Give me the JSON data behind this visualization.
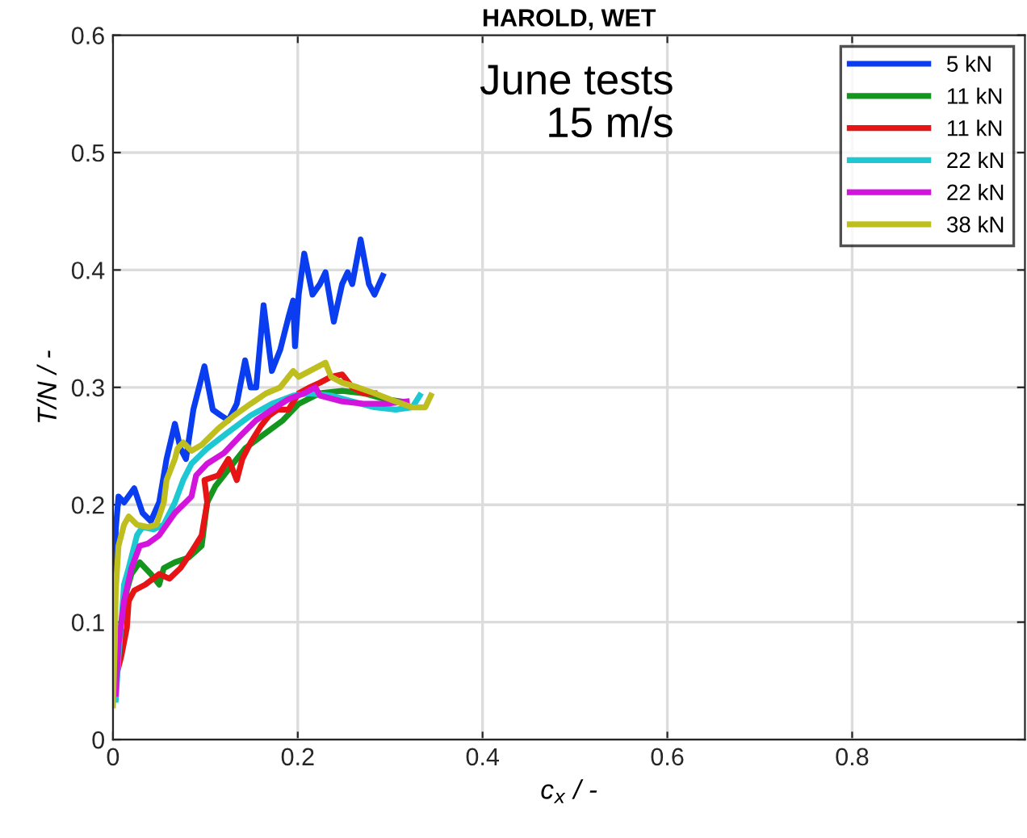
{
  "chart_data": {
    "type": "line",
    "title": "HAROLD, WET",
    "xlabel": "c$_{x}$ / -",
    "ylabel": "T/N / -",
    "annotations": [
      "June tests\n15 m/s"
    ],
    "xlim": [
      0,
      0.987
    ],
    "ylim": [
      0,
      0.6
    ],
    "xticks": [
      0,
      0.2,
      0.4,
      0.6,
      0.8
    ],
    "yticks": [
      0,
      0.1,
      0.2,
      0.3,
      0.4,
      0.5,
      0.6
    ],
    "grid": true,
    "legend": "top right",
    "marker": "none",
    "line_style": "solid",
    "series": [
      {
        "name": "5 kN",
        "color": "#0a3cf0",
        "x": [
          0.002,
          0.003,
          0.006,
          0.012,
          0.023,
          0.032,
          0.041,
          0.05,
          0.058,
          0.067,
          0.073,
          0.079,
          0.087,
          0.099,
          0.108,
          0.117,
          0.125,
          0.134,
          0.143,
          0.149,
          0.155,
          0.163,
          0.172,
          0.181,
          0.19,
          0.195,
          0.197,
          0.201,
          0.207,
          0.216,
          0.224,
          0.23,
          0.239,
          0.248,
          0.254,
          0.259,
          0.268,
          0.277,
          0.283,
          0.292
        ],
        "values": [
          0.113,
          0.179,
          0.207,
          0.202,
          0.214,
          0.193,
          0.186,
          0.202,
          0.239,
          0.269,
          0.248,
          0.239,
          0.281,
          0.318,
          0.281,
          0.276,
          0.272,
          0.286,
          0.323,
          0.3,
          0.3,
          0.37,
          0.314,
          0.332,
          0.36,
          0.374,
          0.335,
          0.379,
          0.414,
          0.379,
          0.388,
          0.398,
          0.356,
          0.388,
          0.398,
          0.388,
          0.426,
          0.388,
          0.379,
          0.395
        ]
      },
      {
        "name": "11 kN",
        "color": "#14961e",
        "x": [
          0.012,
          0.015,
          0.02,
          0.029,
          0.041,
          0.05,
          0.055,
          0.067,
          0.082,
          0.096,
          0.102,
          0.111,
          0.125,
          0.143,
          0.16,
          0.184,
          0.201,
          0.224,
          0.248,
          0.271,
          0.294,
          0.312
        ],
        "values": [
          0.104,
          0.127,
          0.141,
          0.151,
          0.141,
          0.132,
          0.146,
          0.151,
          0.155,
          0.165,
          0.202,
          0.216,
          0.23,
          0.248,
          0.258,
          0.272,
          0.286,
          0.295,
          0.297,
          0.295,
          0.29,
          0.288
        ]
      },
      {
        "name": "11 kN",
        "color": "#e61414",
        "x": [
          0.003,
          0.009,
          0.015,
          0.017,
          0.023,
          0.035,
          0.05,
          0.061,
          0.073,
          0.085,
          0.096,
          0.102,
          0.099,
          0.114,
          0.125,
          0.134,
          0.14,
          0.149,
          0.16,
          0.169,
          0.178,
          0.19,
          0.201,
          0.213,
          0.224,
          0.236,
          0.248,
          0.259,
          0.271,
          0.283
        ],
        "values": [
          0.053,
          0.071,
          0.095,
          0.118,
          0.127,
          0.132,
          0.141,
          0.137,
          0.146,
          0.16,
          0.174,
          0.202,
          0.221,
          0.225,
          0.239,
          0.221,
          0.239,
          0.253,
          0.267,
          0.276,
          0.281,
          0.281,
          0.295,
          0.3,
          0.304,
          0.309,
          0.311,
          0.3,
          0.295,
          0.295
        ]
      },
      {
        "name": "22 kN",
        "color": "#1ec8d2",
        "x": [
          0.003,
          0.006,
          0.009,
          0.012,
          0.017,
          0.026,
          0.032,
          0.044,
          0.055,
          0.067,
          0.076,
          0.085,
          0.102,
          0.125,
          0.149,
          0.172,
          0.195,
          0.213,
          0.236,
          0.259,
          0.283,
          0.306,
          0.324,
          0.332
        ],
        "values": [
          0.034,
          0.071,
          0.099,
          0.132,
          0.146,
          0.174,
          0.181,
          0.179,
          0.183,
          0.202,
          0.221,
          0.235,
          0.248,
          0.262,
          0.276,
          0.286,
          0.293,
          0.295,
          0.293,
          0.288,
          0.283,
          0.281,
          0.283,
          0.293
        ]
      },
      {
        "name": "22 kN",
        "color": "#d214dc",
        "x": [
          0.003,
          0.006,
          0.012,
          0.02,
          0.029,
          0.038,
          0.05,
          0.067,
          0.085,
          0.09,
          0.102,
          0.12,
          0.137,
          0.155,
          0.172,
          0.19,
          0.207,
          0.219,
          0.224,
          0.248,
          0.271,
          0.294,
          0.318
        ],
        "values": [
          0.039,
          0.081,
          0.118,
          0.146,
          0.165,
          0.167,
          0.174,
          0.193,
          0.207,
          0.225,
          0.235,
          0.244,
          0.258,
          0.272,
          0.281,
          0.29,
          0.295,
          0.3,
          0.293,
          0.288,
          0.286,
          0.286,
          0.288
        ]
      },
      {
        "name": "38 kN",
        "color": "#bebe1e",
        "x": [
          0.0,
          0.002,
          0.003,
          0.006,
          0.012,
          0.017,
          0.026,
          0.038,
          0.047,
          0.055,
          0.058,
          0.067,
          0.07,
          0.076,
          0.085,
          0.096,
          0.114,
          0.131,
          0.149,
          0.166,
          0.181,
          0.195,
          0.201,
          0.213,
          0.23,
          0.236,
          0.248,
          0.265,
          0.283,
          0.306,
          0.324,
          0.338,
          0.344
        ],
        "values": [
          0.029,
          0.081,
          0.127,
          0.165,
          0.183,
          0.19,
          0.183,
          0.181,
          0.183,
          0.202,
          0.221,
          0.239,
          0.248,
          0.253,
          0.246,
          0.251,
          0.265,
          0.276,
          0.286,
          0.295,
          0.3,
          0.314,
          0.309,
          0.314,
          0.321,
          0.309,
          0.304,
          0.3,
          0.295,
          0.288,
          0.283,
          0.283,
          0.293
        ]
      }
    ]
  }
}
